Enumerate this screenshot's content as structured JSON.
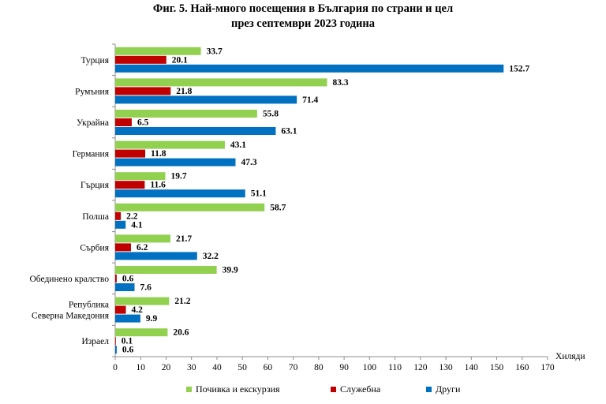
{
  "chart_data": {
    "type": "bar",
    "orientation": "horizontal",
    "title_line1": "Фиг. 5. Най-много посещения в България по страни и цел",
    "title_line2": "през септември 2023 година",
    "xlabel": "Хиляди",
    "xlim": [
      0,
      170
    ],
    "xticks": [
      0,
      10,
      20,
      30,
      40,
      50,
      60,
      70,
      80,
      90,
      100,
      110,
      120,
      130,
      140,
      150,
      160,
      170
    ],
    "categories": [
      [
        "Турция"
      ],
      [
        "Румъния"
      ],
      [
        "Украйна"
      ],
      [
        "Германия"
      ],
      [
        "Гърция"
      ],
      [
        "Полша"
      ],
      [
        "Сърбия"
      ],
      [
        "Обединено кралство"
      ],
      [
        "Република",
        "Северна Македония"
      ],
      [
        "Израел"
      ]
    ],
    "series": [
      {
        "name": "Почивка и екскурзия",
        "color": "#92d050",
        "values": [
          33.7,
          83.3,
          55.8,
          43.1,
          19.7,
          58.7,
          21.7,
          39.9,
          21.2,
          20.6
        ]
      },
      {
        "name": "Служебна",
        "color": "#c00000",
        "values": [
          20.1,
          21.8,
          6.5,
          11.8,
          11.6,
          2.2,
          6.2,
          0.6,
          4.2,
          0.1
        ]
      },
      {
        "name": "Други",
        "color": "#0070c0",
        "values": [
          152.7,
          71.4,
          63.1,
          47.3,
          51.1,
          4.1,
          32.2,
          7.6,
          9.9,
          0.6
        ]
      }
    ],
    "legend_position": "bottom",
    "grid": false
  }
}
